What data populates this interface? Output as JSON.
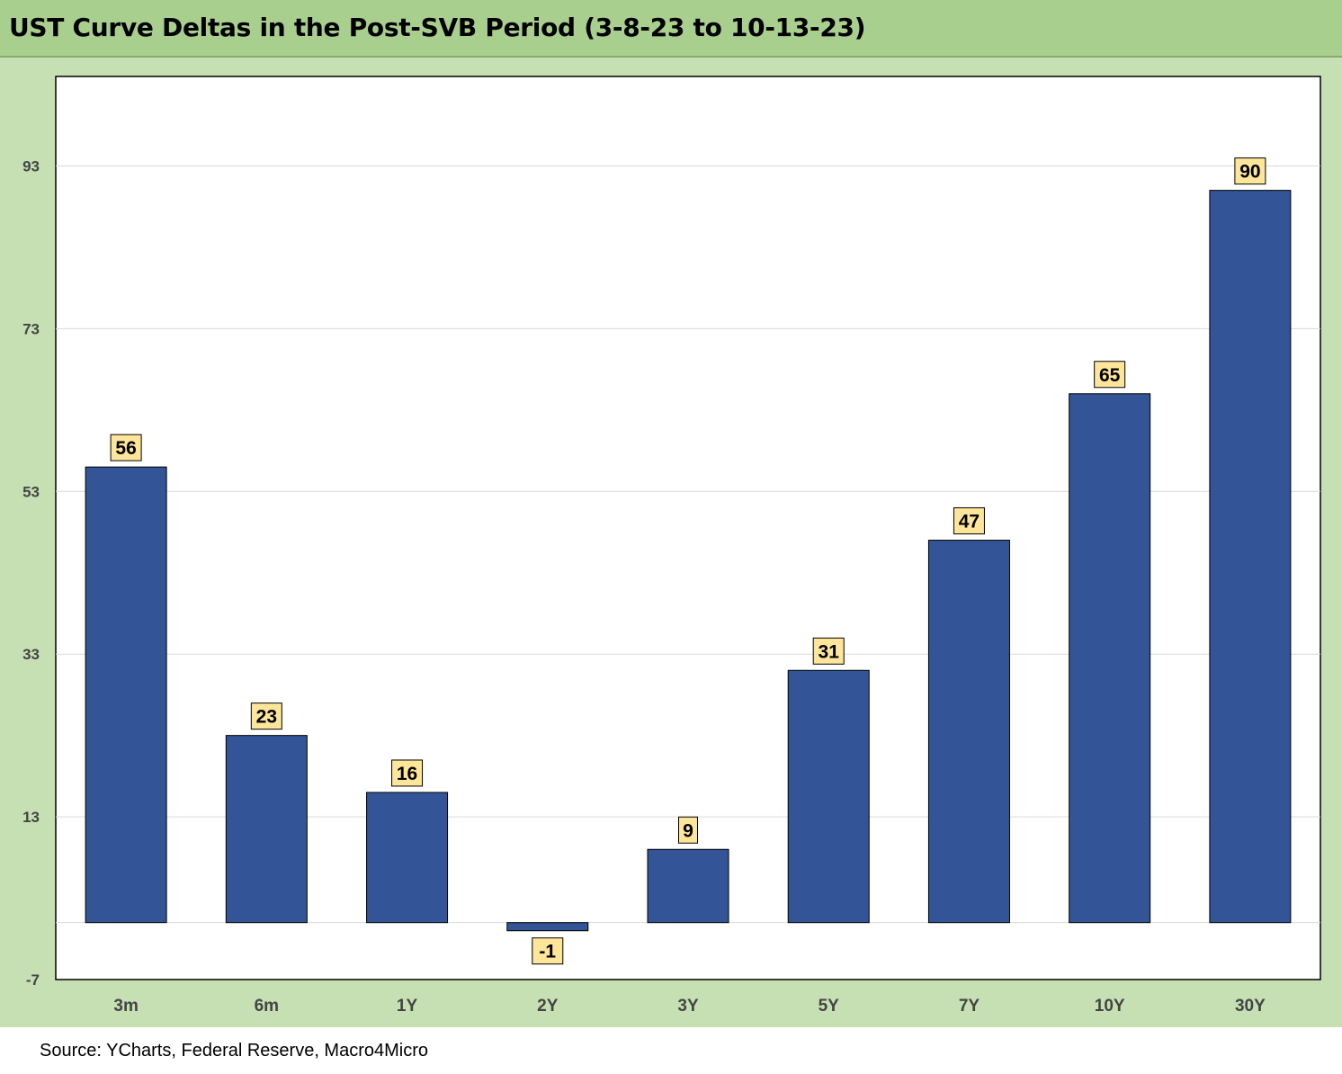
{
  "title": "UST Curve Deltas in the Post-SVB Period (3-8-23 to 10-13-23)",
  "source": "Source: YCharts, Federal Reserve, Macro4Micro",
  "colors": {
    "title_bar": "#a9cf8e",
    "chart_background": "#c6e0b4",
    "plot_background": "#ffffff",
    "bar_fill": "#335496",
    "label_box": "#fde59a"
  },
  "chart_data": {
    "type": "bar",
    "categories": [
      "3m",
      "6m",
      "1Y",
      "2Y",
      "3Y",
      "5Y",
      "7Y",
      "10Y",
      "30Y"
    ],
    "values": [
      56,
      23,
      16,
      -1,
      9,
      31,
      47,
      65,
      90
    ],
    "data_labels": [
      "56",
      "23",
      "16",
      "-1",
      "9",
      "31",
      "47",
      "65",
      "90"
    ],
    "yticks": [
      -7,
      13,
      33,
      53,
      73,
      93
    ],
    "ytick_labels": [
      "-7",
      "13",
      "33",
      "53",
      "73",
      "93"
    ],
    "ylim": [
      -7,
      104
    ],
    "grid": true,
    "legend": false
  }
}
